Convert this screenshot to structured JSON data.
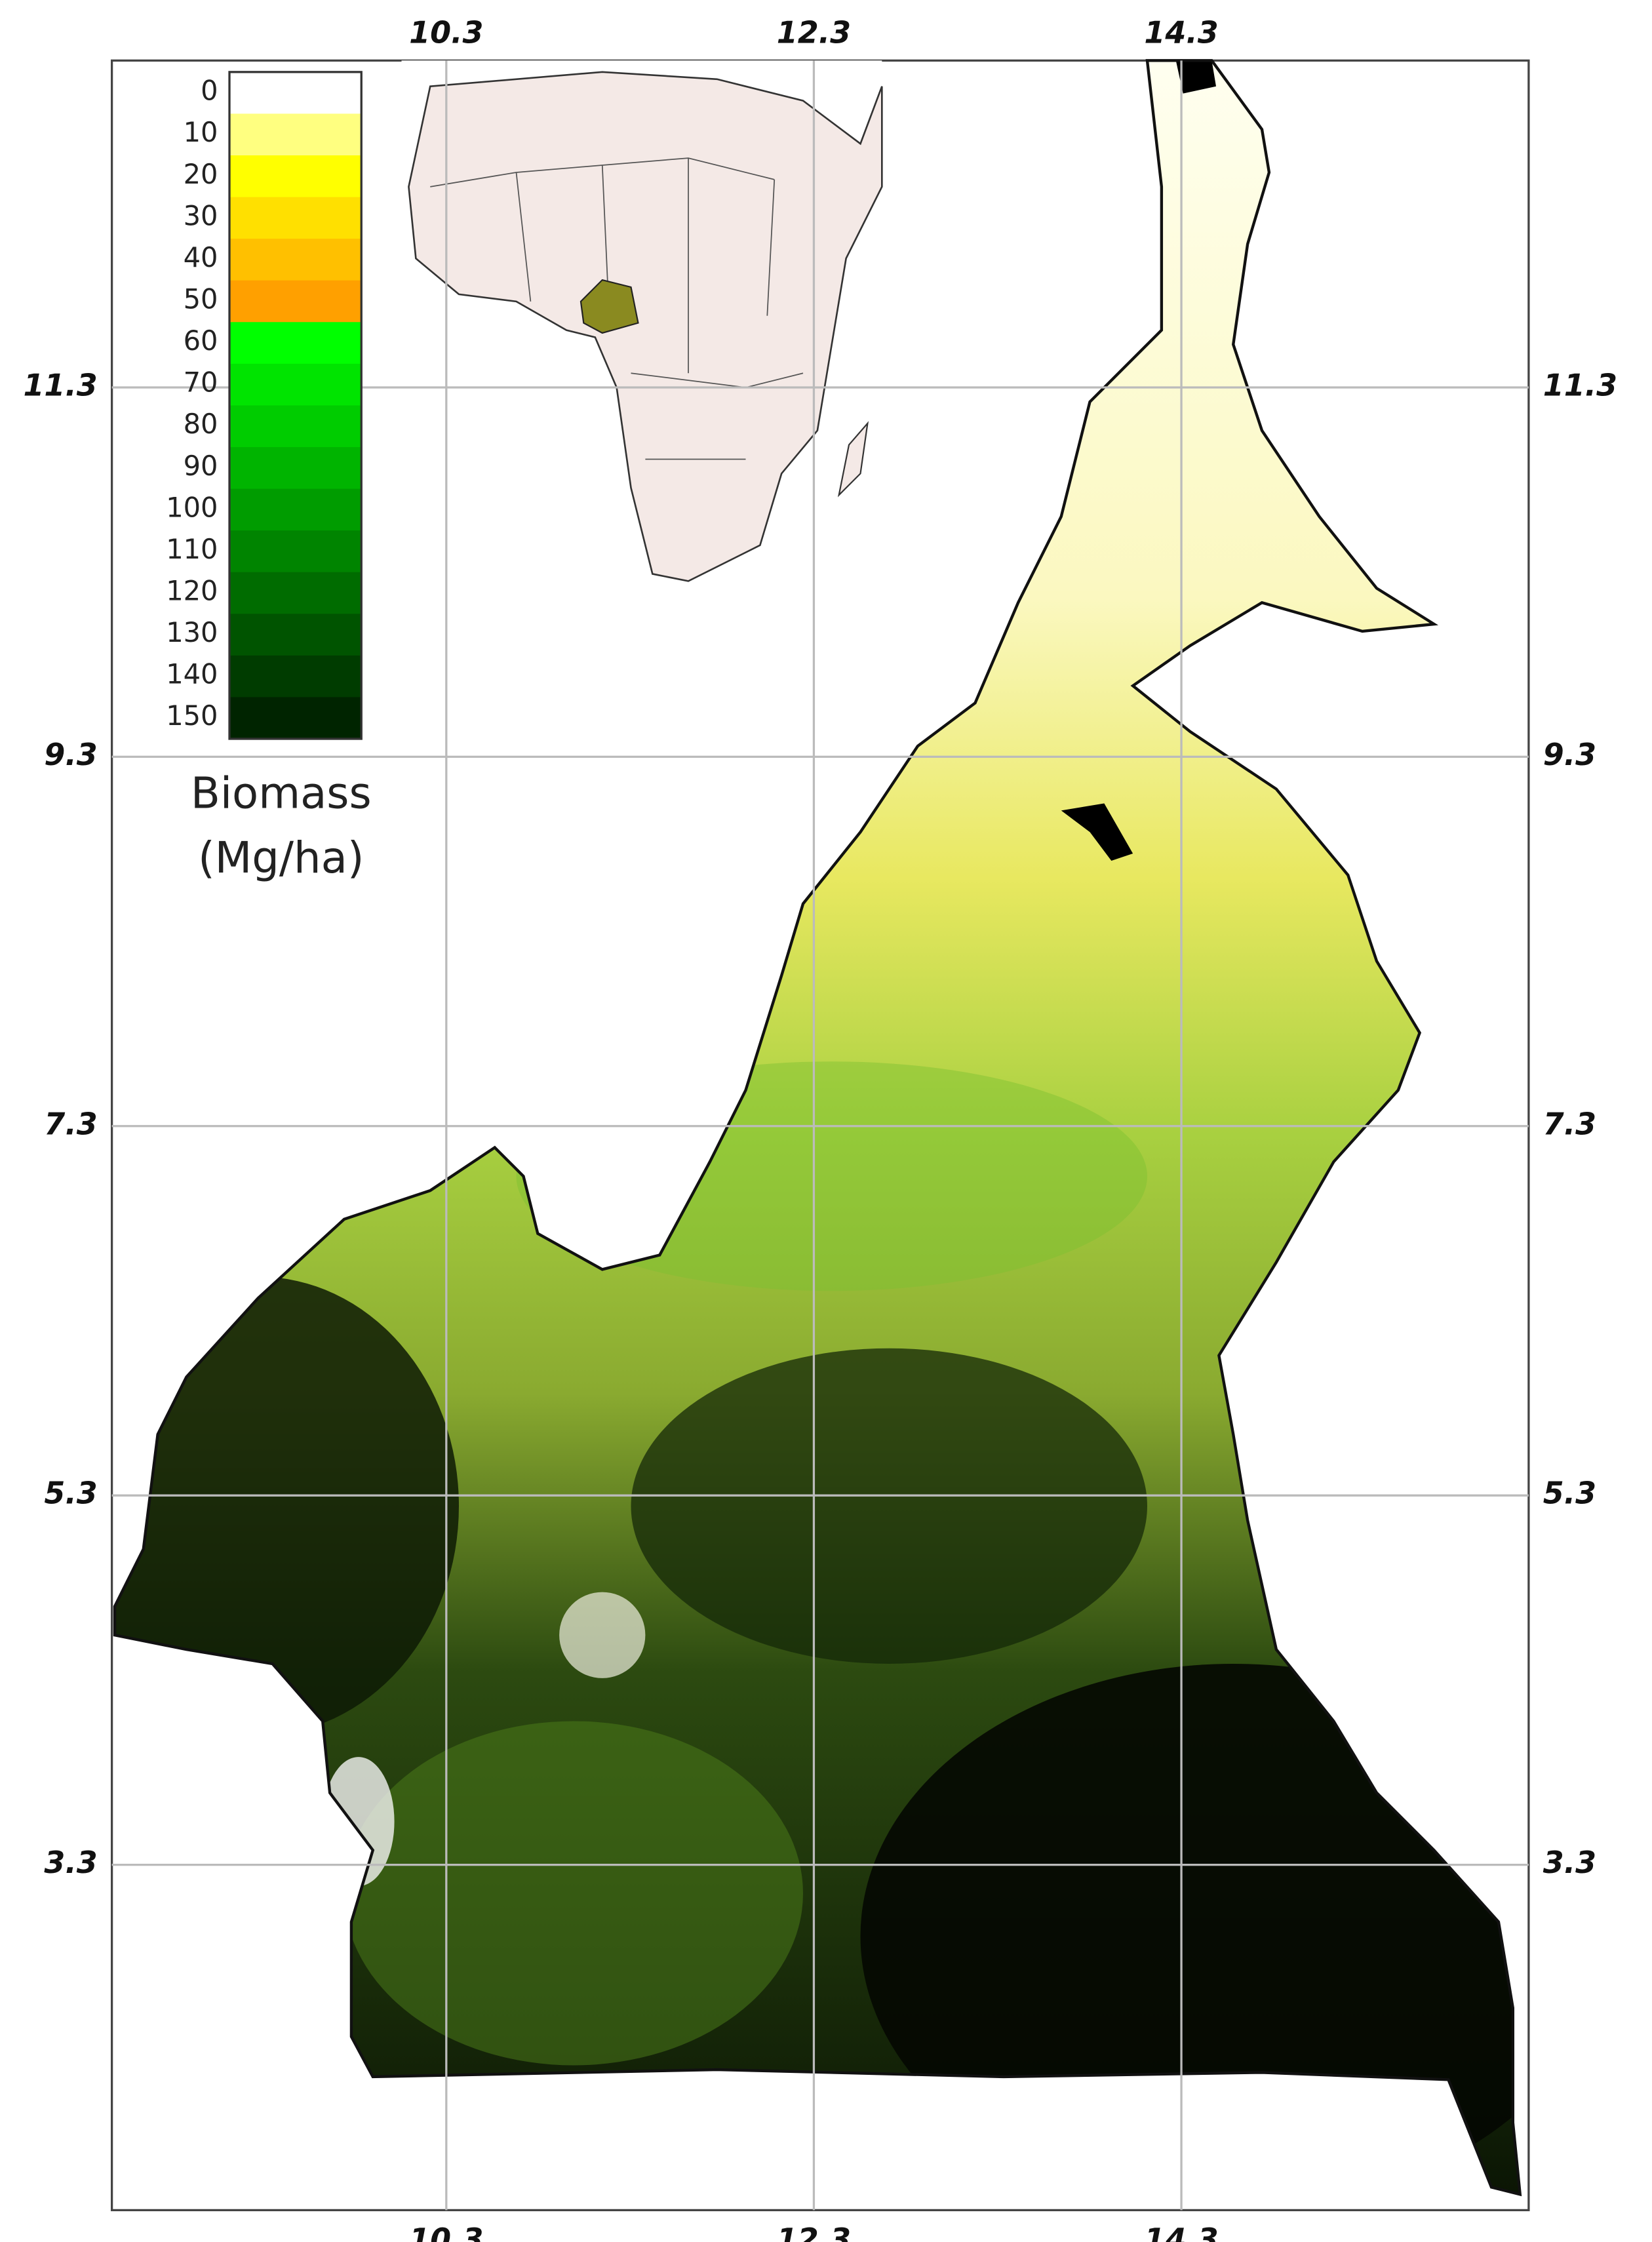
{
  "map": {
    "xlim": [
      8.48,
      16.19
    ],
    "ylim": [
      1.43,
      13.07
    ],
    "xticks": [
      10.3,
      12.3,
      14.3
    ],
    "yticks": [
      11.3,
      9.3,
      7.3,
      5.3,
      3.3
    ],
    "grid": true,
    "legend": {
      "title": [
        "Biomass",
        "(Mg/ha)"
      ],
      "ticks": [
        0,
        10,
        20,
        30,
        40,
        50,
        60,
        70,
        80,
        90,
        100,
        110,
        120,
        130,
        140,
        150
      ],
      "colors": [
        "#ffffff",
        "#ffff80",
        "#ffff00",
        "#ffe000",
        "#ffc000",
        "#ffa000",
        "#00ff00",
        "#00e400",
        "#00cc00",
        "#00b400",
        "#009c00",
        "#008400",
        "#006c00",
        "#005400",
        "#003c00",
        "#002400"
      ]
    }
  }
}
